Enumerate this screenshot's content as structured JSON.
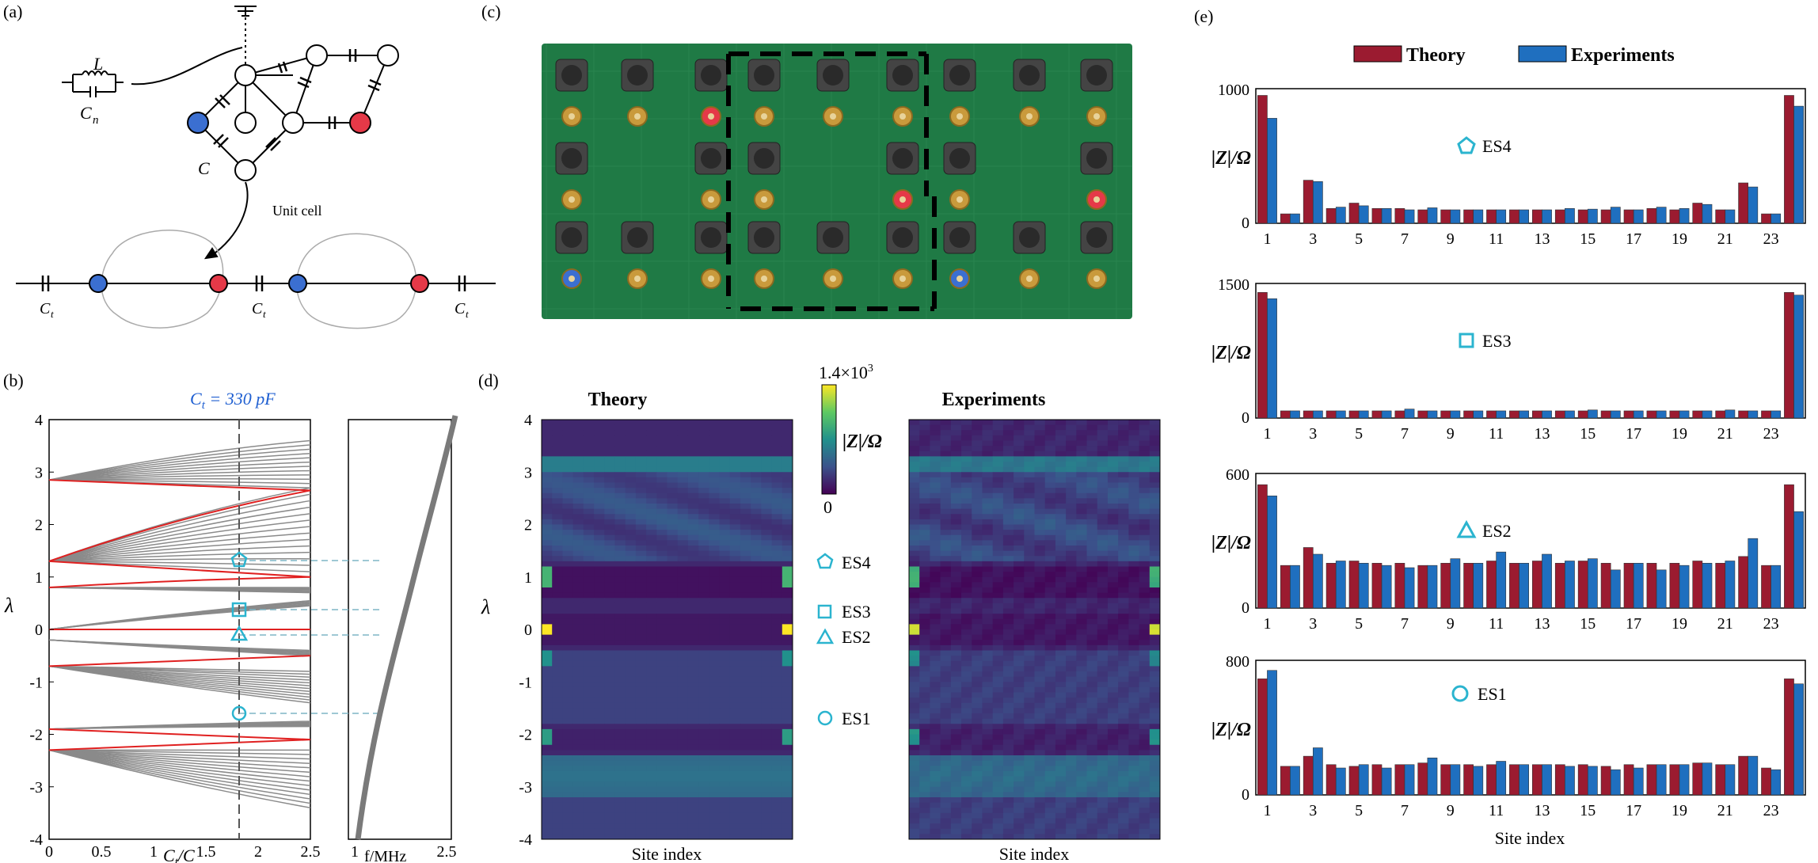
{
  "panels": {
    "a": "(a)",
    "b": "(b)",
    "c": "(c)",
    "d": "(d)",
    "e": "(e)"
  },
  "panel_a": {
    "inductor_label": "L",
    "cn_label": "C",
    "cn_sub": "n",
    "c_label": "C",
    "unit_cell_label": "Unit cell",
    "ct_label": "C",
    "ct_sub": "t"
  },
  "panel_b": {
    "ct_annotation_pre": "C",
    "ct_annotation_sub": "t",
    "ct_annotation_post": " = 330 pF",
    "ylabel": "λ",
    "xlabel_main": "C",
    "xlabel_sub": "t",
    "xlabel_post": "/C",
    "xlabel_right": "f/MHz",
    "yticks": [
      "4",
      "3",
      "2",
      "1",
      "0",
      "-1",
      "-2",
      "-3",
      "-4"
    ],
    "xticks_left": [
      "0",
      "0.5",
      "1",
      "1.5",
      "2",
      "2.5"
    ],
    "xticks_right": [
      "1",
      "2.5"
    ]
  },
  "panel_d": {
    "theory_title": "Theory",
    "experiments_title": "Experiments",
    "colorbar_max": "1.4×10",
    "colorbar_max_exp": "3",
    "colorbar_min": "0",
    "colorbar_label": "|Z|/Ω",
    "ylabel": "λ",
    "xlabel": "Site index",
    "yticks": [
      "4",
      "3",
      "2",
      "1",
      "0",
      "-1",
      "-2",
      "-3",
      "-4"
    ],
    "states": [
      "ES4",
      "ES3",
      "ES2",
      "ES1"
    ]
  },
  "panel_e": {
    "legend_theory": "Theory",
    "legend_experiments": "Experiments",
    "ylabel": "|Z|/Ω",
    "xlabel": "Site index",
    "colors": {
      "theory": "#9b1b30",
      "experiments": "#1f6fbf"
    },
    "xtick_labels": [
      "1",
      "3",
      "5",
      "7",
      "9",
      "11",
      "13",
      "15",
      "17",
      "19",
      "21",
      "23"
    ]
  },
  "chart_data": [
    {
      "type": "bar",
      "title": "ES4",
      "ylabel": "|Z|/Ω",
      "ylim": [
        0,
        1000
      ],
      "ytick_labels": [
        "1000",
        "0"
      ],
      "categories": [
        1,
        2,
        3,
        4,
        5,
        6,
        7,
        8,
        9,
        10,
        11,
        12,
        13,
        14,
        15,
        16,
        17,
        18,
        19,
        20,
        21,
        22,
        23,
        24
      ],
      "series": [
        {
          "name": "Theory",
          "values": [
            950,
            70,
            320,
            110,
            150,
            110,
            110,
            100,
            100,
            100,
            100,
            100,
            100,
            100,
            100,
            100,
            100,
            110,
            100,
            150,
            100,
            300,
            70,
            950
          ]
        },
        {
          "name": "Experiments",
          "values": [
            780,
            70,
            310,
            120,
            130,
            110,
            100,
            115,
            100,
            100,
            100,
            100,
            100,
            110,
            105,
            120,
            100,
            120,
            110,
            140,
            100,
            270,
            70,
            870
          ]
        }
      ]
    },
    {
      "type": "bar",
      "title": "ES3",
      "ylabel": "|Z|/Ω",
      "ylim": [
        0,
        1500
      ],
      "ytick_labels": [
        "1500",
        "0"
      ],
      "categories": [
        1,
        2,
        3,
        4,
        5,
        6,
        7,
        8,
        9,
        10,
        11,
        12,
        13,
        14,
        15,
        16,
        17,
        18,
        19,
        20,
        21,
        22,
        23,
        24
      ],
      "series": [
        {
          "name": "Theory",
          "values": [
            1400,
            80,
            80,
            80,
            80,
            80,
            80,
            80,
            80,
            80,
            80,
            80,
            80,
            80,
            80,
            80,
            80,
            80,
            80,
            80,
            80,
            80,
            80,
            1400
          ]
        },
        {
          "name": "Experiments",
          "values": [
            1330,
            80,
            80,
            80,
            80,
            80,
            100,
            80,
            80,
            80,
            80,
            80,
            80,
            80,
            90,
            80,
            80,
            80,
            80,
            80,
            90,
            80,
            80,
            1370
          ]
        }
      ]
    },
    {
      "type": "bar",
      "title": "ES2",
      "ylabel": "|Z|/Ω",
      "ylim": [
        0,
        600
      ],
      "ytick_labels": [
        "600",
        "0"
      ],
      "categories": [
        1,
        2,
        3,
        4,
        5,
        6,
        7,
        8,
        9,
        10,
        11,
        12,
        13,
        14,
        15,
        16,
        17,
        18,
        19,
        20,
        21,
        22,
        23,
        24
      ],
      "series": [
        {
          "name": "Theory",
          "values": [
            550,
            190,
            270,
            200,
            210,
            200,
            200,
            190,
            200,
            200,
            210,
            200,
            210,
            200,
            210,
            200,
            200,
            200,
            200,
            210,
            200,
            230,
            190,
            550
          ]
        },
        {
          "name": "Experiments",
          "values": [
            500,
            190,
            240,
            210,
            200,
            190,
            180,
            190,
            220,
            200,
            250,
            200,
            240,
            210,
            220,
            170,
            200,
            170,
            190,
            200,
            210,
            310,
            190,
            430
          ]
        }
      ]
    },
    {
      "type": "bar",
      "title": "ES1",
      "ylabel": "|Z|/Ω",
      "ylim": [
        0,
        800
      ],
      "ytick_labels": [
        "800",
        "0"
      ],
      "categories": [
        1,
        2,
        3,
        4,
        5,
        6,
        7,
        8,
        9,
        10,
        11,
        12,
        13,
        14,
        15,
        16,
        17,
        18,
        19,
        20,
        21,
        22,
        23,
        24
      ],
      "series": [
        {
          "name": "Theory",
          "values": [
            690,
            170,
            230,
            180,
            170,
            180,
            180,
            190,
            180,
            180,
            180,
            180,
            180,
            180,
            180,
            170,
            180,
            180,
            180,
            190,
            180,
            230,
            160,
            690
          ]
        },
        {
          "name": "Experiments",
          "values": [
            740,
            170,
            280,
            160,
            180,
            160,
            180,
            220,
            180,
            170,
            200,
            180,
            180,
            170,
            170,
            150,
            160,
            180,
            180,
            190,
            180,
            230,
            150,
            660
          ]
        }
      ]
    }
  ]
}
